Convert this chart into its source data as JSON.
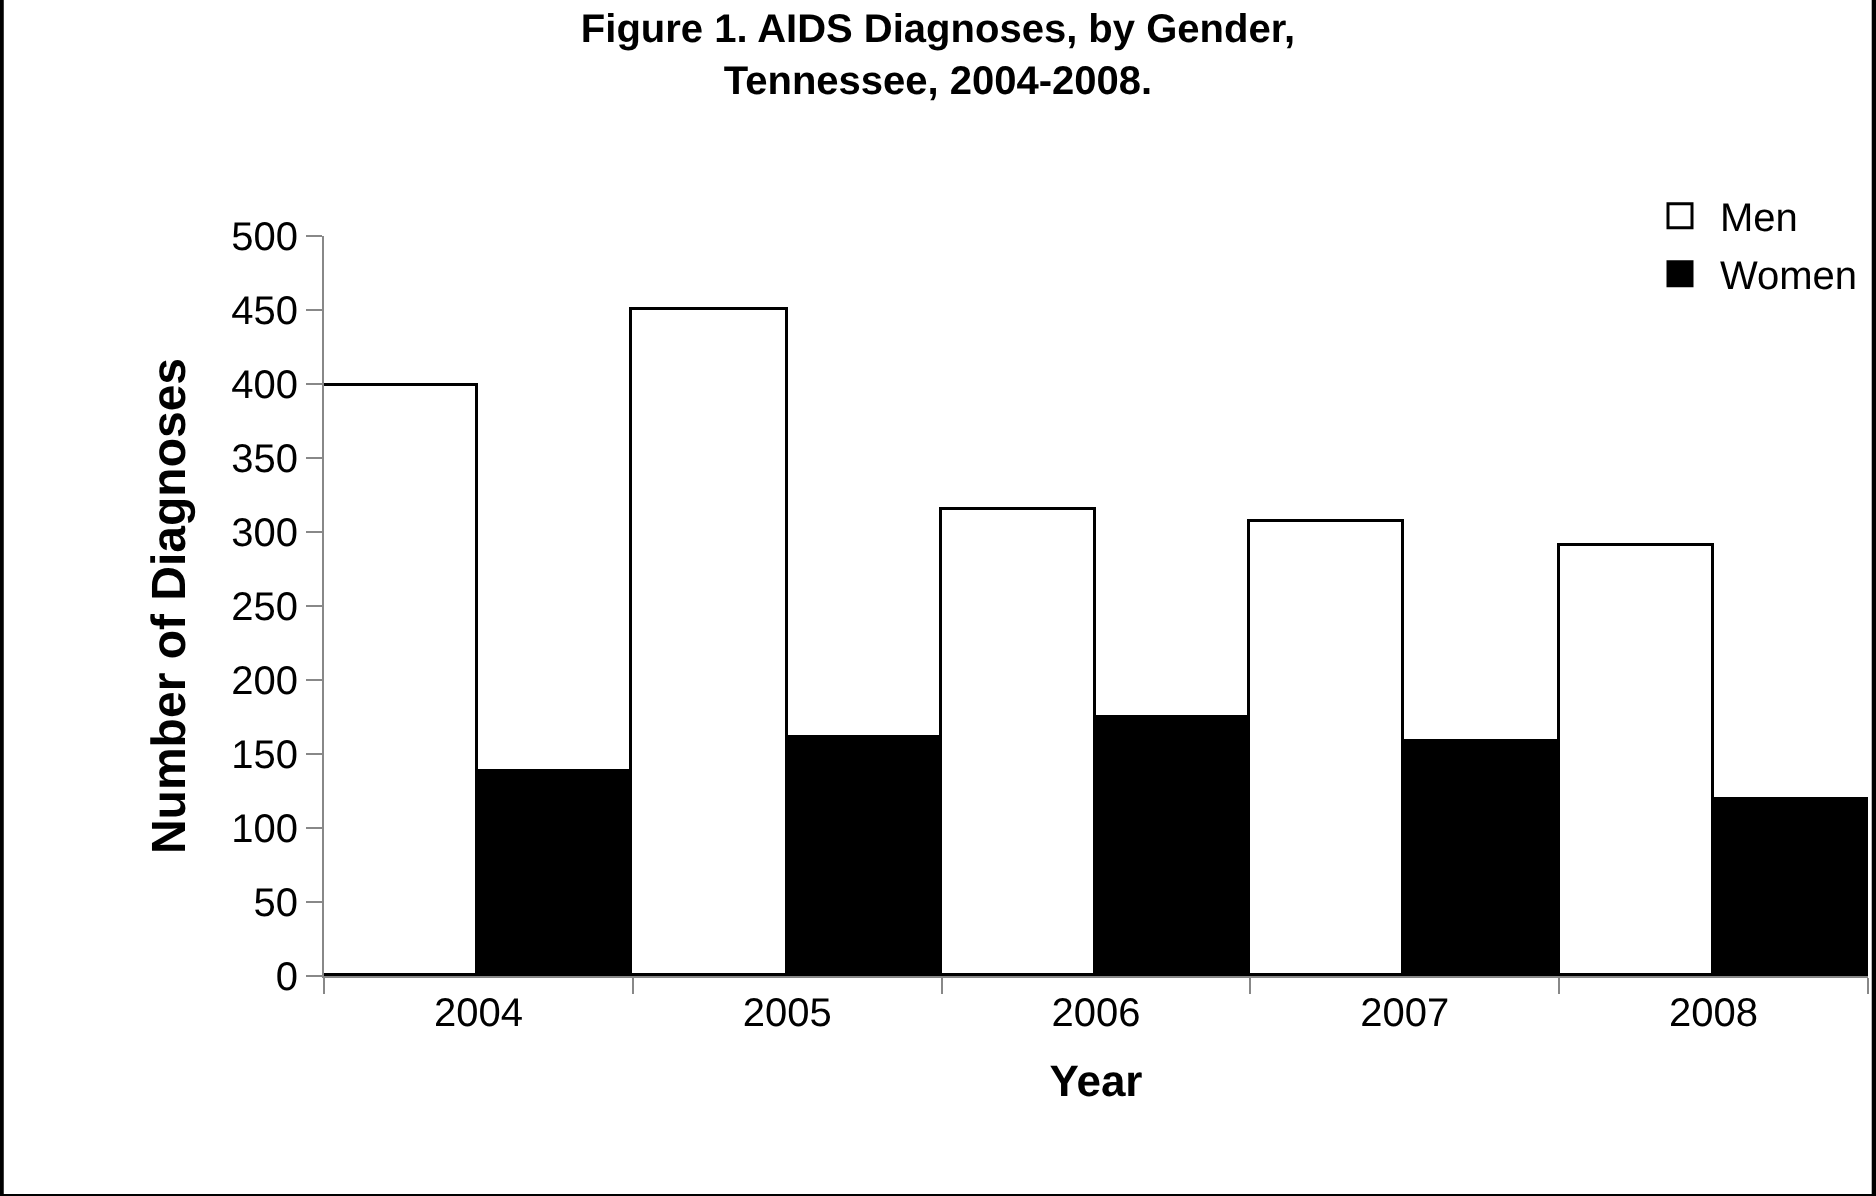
{
  "chart_data": {
    "type": "bar",
    "title": "Figure 1. AIDS Diagnoses, by Gender,\nTennessee, 2004-2008.",
    "xlabel": "Year",
    "ylabel": "Number of Diagnoses",
    "categories": [
      "2004",
      "2005",
      "2006",
      "2007",
      "2008"
    ],
    "series": [
      {
        "name": "Men",
        "color": "#ffffff",
        "values": [
          398,
          450,
          315,
          307,
          290
        ]
      },
      {
        "name": "Women",
        "color": "#000000",
        "values": [
          138,
          161,
          175,
          158,
          119
        ]
      }
    ],
    "ylim": [
      0,
      500
    ],
    "yticks": [
      0,
      50,
      100,
      150,
      200,
      250,
      300,
      350,
      400,
      450,
      500
    ],
    "legend": "top right"
  }
}
